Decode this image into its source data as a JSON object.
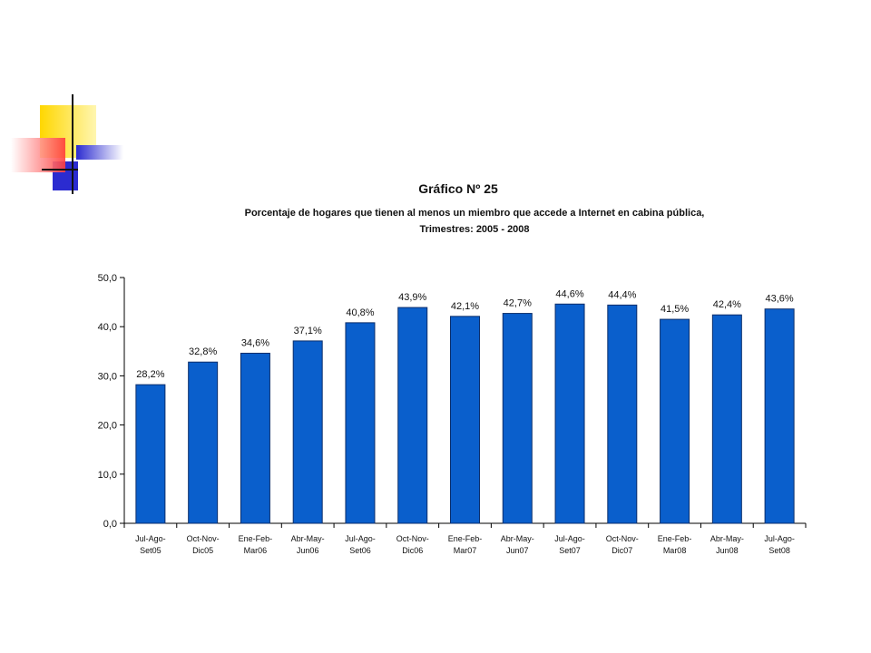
{
  "colors": {
    "bar": "#0A5FCC",
    "bar_stroke": "#0B2E6B",
    "axis": "#000000",
    "deco_yellow": "#FFD700",
    "deco_red": "#FF3B3B",
    "deco_blue": "#2B2BD0"
  },
  "decoration_icon": "corner-squares-decoration",
  "chart_data": {
    "type": "bar",
    "title": "Gráfico Nº 25",
    "subtitle_line1": "Porcentaje de hogares que tienen al menos un miembro que accede a Internet en cabina pública,",
    "subtitle_line2": "Trimestres: 2005 - 2008",
    "xlabel": "",
    "ylabel": "",
    "ylim": [
      0,
      50
    ],
    "yticks": [
      "0,0",
      "10,0",
      "20,0",
      "30,0",
      "40,0",
      "50,0"
    ],
    "grid": false,
    "categories": [
      [
        "Jul-Ago-",
        "Set05"
      ],
      [
        "Oct-Nov-",
        "Dic05"
      ],
      [
        "Ene-Feb-",
        "Mar06"
      ],
      [
        "Abr-May-",
        "Jun06"
      ],
      [
        "Jul-Ago-",
        "Set06"
      ],
      [
        "Oct-Nov-",
        "Dic06"
      ],
      [
        "Ene-Feb-",
        "Mar07"
      ],
      [
        "Abr-May-",
        "Jun07"
      ],
      [
        "Jul-Ago-",
        "Set07"
      ],
      [
        "Oct-Nov-",
        "Dic07"
      ],
      [
        "Ene-Feb-",
        "Mar08"
      ],
      [
        "Abr-May-",
        "Jun08"
      ],
      [
        "Jul-Ago-",
        "Set08"
      ]
    ],
    "values": [
      28.2,
      32.8,
      34.6,
      37.1,
      40.8,
      43.9,
      42.1,
      42.7,
      44.6,
      44.4,
      41.5,
      42.4,
      43.6
    ],
    "data_labels": [
      "28,2%",
      "32,8%",
      "34,6%",
      "37,1%",
      "40,8%",
      "43,9%",
      "42,1%",
      "42,7%",
      "44,6%",
      "44,4%",
      "41,5%",
      "42,4%",
      "43,6%"
    ]
  }
}
